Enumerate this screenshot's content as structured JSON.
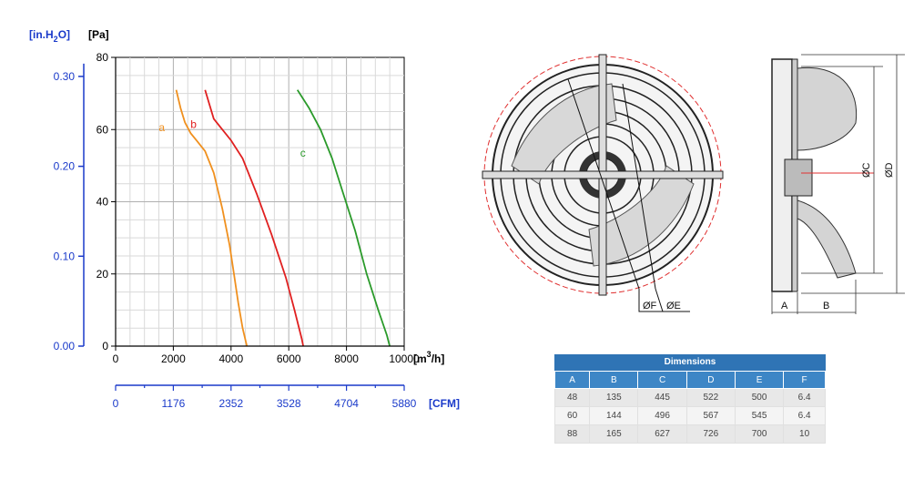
{
  "chart_data": {
    "type": "line",
    "title": "",
    "ylabel_left_units": [
      "[in.H",
      "2",
      "O]"
    ],
    "ylabel_pa": "[Pa]",
    "xlabel": "[m",
    "xlabel_sup": "3",
    "xlabel_end": "/h]",
    "cfm_label": "[CFM]",
    "xlim": [
      0,
      10000
    ],
    "ylim": [
      0,
      80
    ],
    "grid": true,
    "x_ticks": [
      0,
      2000,
      4000,
      6000,
      8000,
      10000
    ],
    "y_ticks": [
      0,
      20,
      40,
      60,
      80
    ],
    "inh2o_ticks": [
      "0.00",
      "0.10",
      "0.20",
      "0.30"
    ],
    "inh2o_values": [
      0.0,
      0.1,
      0.2,
      0.3
    ],
    "cfm_ticks": [
      "0",
      "1176",
      "2352",
      "3528",
      "4704",
      "5880"
    ],
    "series": [
      {
        "name": "a",
        "color": "#f0901e",
        "points": [
          [
            2100,
            71
          ],
          [
            2250,
            66
          ],
          [
            2400,
            62
          ],
          [
            2600,
            59
          ],
          [
            2800,
            57
          ],
          [
            3100,
            54
          ],
          [
            3400,
            48
          ],
          [
            3700,
            38
          ],
          [
            3950,
            28
          ],
          [
            4100,
            20
          ],
          [
            4250,
            12
          ],
          [
            4400,
            5
          ],
          [
            4550,
            0
          ]
        ]
      },
      {
        "name": "b",
        "color": "#e02020",
        "points": [
          [
            3100,
            71
          ],
          [
            3250,
            67
          ],
          [
            3400,
            63
          ],
          [
            3700,
            60
          ],
          [
            4000,
            57
          ],
          [
            4400,
            52
          ],
          [
            4900,
            42
          ],
          [
            5400,
            31
          ],
          [
            5900,
            19
          ],
          [
            6200,
            10
          ],
          [
            6450,
            2
          ],
          [
            6500,
            0
          ]
        ]
      },
      {
        "name": "c",
        "color": "#2a9a2a",
        "points": [
          [
            6300,
            71
          ],
          [
            6700,
            66
          ],
          [
            7100,
            60
          ],
          [
            7500,
            52
          ],
          [
            7900,
            42
          ],
          [
            8300,
            32
          ],
          [
            8700,
            20
          ],
          [
            9100,
            10
          ],
          [
            9400,
            3
          ],
          [
            9500,
            0
          ]
        ]
      }
    ]
  },
  "drawing": {
    "front": {
      "labels": {
        "f": "ØF",
        "e": "ØE"
      }
    },
    "side": {
      "labels": {
        "c": "ØC",
        "d": "ØD",
        "a": "A",
        "b": "B"
      }
    }
  },
  "dimensions_table": {
    "title": "Dimensions",
    "headers": [
      "A",
      "B",
      "C",
      "D",
      "E",
      "F"
    ],
    "rows": [
      [
        "48",
        "135",
        "445",
        "522",
        "500",
        "6.4"
      ],
      [
        "60",
        "144",
        "496",
        "567",
        "545",
        "6.4"
      ],
      [
        "88",
        "165",
        "627",
        "726",
        "700",
        "10"
      ]
    ]
  }
}
